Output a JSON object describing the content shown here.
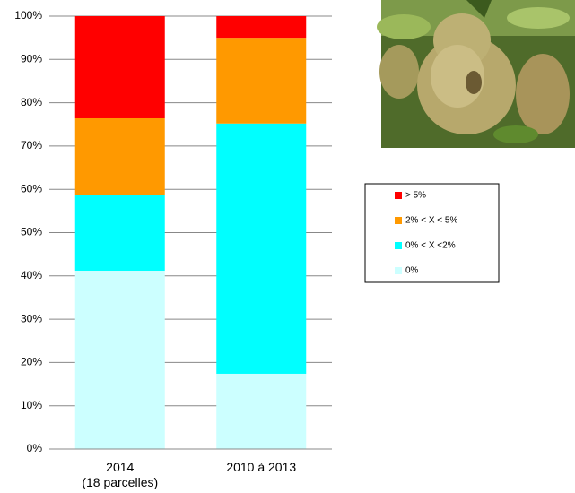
{
  "chart_data": {
    "type": "stacked-bar",
    "categories": [
      "2014\n(18 parcelles)",
      "2010 à 2013"
    ],
    "series": [
      {
        "name": "0%",
        "color": "#ccffff",
        "values": [
          41.2,
          17.4
        ]
      },
      {
        "name": "0% < X <2%",
        "color": "#00ffff",
        "values": [
          17.6,
          57.8
        ]
      },
      {
        "name": "2% < X < 5%",
        "color": "#ff9900",
        "values": [
          17.6,
          19.8
        ]
      },
      {
        "name": "> 5%",
        "color": "#ff0000",
        "values": [
          23.6,
          5.0
        ]
      }
    ],
    "ylim": [
      0,
      100
    ],
    "yticks": [
      {
        "value": 0,
        "label": "0%"
      },
      {
        "value": 10,
        "label": "10%"
      },
      {
        "value": 20,
        "label": "20%"
      },
      {
        "value": 30,
        "label": "30%"
      },
      {
        "value": 40,
        "label": "40%"
      },
      {
        "value": 50,
        "label": "50%"
      },
      {
        "value": 60,
        "label": "60%"
      },
      {
        "value": 70,
        "label": "70%"
      },
      {
        "value": 80,
        "label": "80%"
      },
      {
        "value": 90,
        "label": "90%"
      },
      {
        "value": 100,
        "label": "100%"
      }
    ],
    "grid": true,
    "legend": "right"
  }
}
